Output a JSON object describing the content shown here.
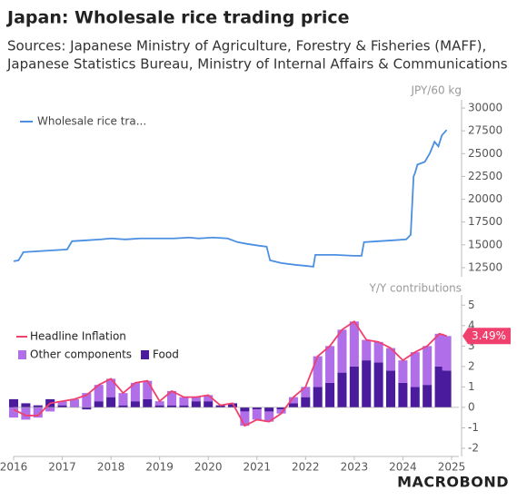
{
  "title": "Japan: Wholesale rice trading price",
  "subtitle": [
    "Sources: Japanese Ministry of Agriculture, Forestry & Fisheries (MAFF),",
    "Japanese Statistics Bureau, Ministry of Internal Affairs & Communications"
  ],
  "logo": "MACROBOND",
  "chart_data": [
    {
      "type": "line",
      "y_label": "JPY/60 kg",
      "legend": "top-left",
      "xlim": [
        2016,
        2025.15
      ],
      "ylim": [
        11500,
        30900
      ],
      "yticks": [
        12500,
        15000,
        17500,
        20000,
        22500,
        25000,
        27500,
        30000
      ],
      "series": [
        {
          "name": "Wholesale rice tra...",
          "color": "#4a8fe2",
          "x": [
            2016.0,
            2016.1,
            2016.2,
            2016.5,
            2016.8,
            2017.1,
            2017.2,
            2017.5,
            2017.8,
            2018.0,
            2018.3,
            2018.6,
            2019.0,
            2019.3,
            2019.6,
            2019.8,
            2020.1,
            2020.4,
            2020.6,
            2020.8,
            2021.05,
            2021.2,
            2021.27,
            2021.5,
            2021.8,
            2022.0,
            2022.16,
            2022.2,
            2022.6,
            2023.0,
            2023.15,
            2023.2,
            2023.5,
            2023.8,
            2024.07,
            2024.16,
            2024.22,
            2024.25,
            2024.3,
            2024.45,
            2024.55,
            2024.65,
            2024.73,
            2024.8,
            2024.9
          ],
          "values": [
            13200,
            13300,
            14200,
            14300,
            14400,
            14500,
            15400,
            15500,
            15600,
            15700,
            15600,
            15700,
            15700,
            15700,
            15800,
            15700,
            15800,
            15700,
            15300,
            15100,
            14900,
            14800,
            13300,
            13000,
            12800,
            12700,
            12600,
            13900,
            13900,
            13800,
            13800,
            15300,
            15400,
            15500,
            15600,
            16100,
            22500,
            22900,
            23800,
            24100,
            25000,
            26300,
            25800,
            27000,
            27600
          ]
        }
      ]
    },
    {
      "type": "bar",
      "stacked": true,
      "y_label": "Y/Y contributions",
      "legend": "top-left",
      "xlim": [
        2016,
        2025.15
      ],
      "ylim": [
        -2.4,
        5.5
      ],
      "xticks": [
        2016,
        2017,
        2018,
        2019,
        2020,
        2021,
        2022,
        2023,
        2024,
        2025
      ],
      "yticks": [
        -2,
        -1,
        0,
        1,
        2,
        3,
        4,
        5
      ],
      "x": [
        2016.0,
        2016.25,
        2016.5,
        2016.75,
        2017.0,
        2017.25,
        2017.5,
        2017.75,
        2018.0,
        2018.25,
        2018.5,
        2018.75,
        2019.0,
        2019.25,
        2019.5,
        2019.75,
        2020.0,
        2020.25,
        2020.5,
        2020.75,
        2021.0,
        2021.25,
        2021.5,
        2021.75,
        2022.0,
        2022.25,
        2022.5,
        2022.75,
        2023.0,
        2023.25,
        2023.5,
        2023.75,
        2024.0,
        2024.25,
        2024.5,
        2024.75,
        2024.9
      ],
      "series": [
        {
          "name": "Headline Inflation",
          "type": "line",
          "color": "#f0406e",
          "values": [
            -0.1,
            -0.4,
            -0.4,
            0.2,
            0.3,
            0.4,
            0.6,
            1.1,
            1.4,
            0.7,
            1.2,
            1.3,
            0.3,
            0.8,
            0.5,
            0.5,
            0.6,
            0.1,
            0.2,
            -0.9,
            -0.6,
            -0.7,
            -0.3,
            0.5,
            1.0,
            2.5,
            3.0,
            3.8,
            4.2,
            3.3,
            3.2,
            2.9,
            2.3,
            2.7,
            3.0,
            3.6,
            3.49
          ],
          "value_labels": [
            null,
            null,
            null,
            null,
            null,
            null,
            null,
            null,
            null,
            null,
            null,
            null,
            null,
            null,
            null,
            null,
            null,
            null,
            null,
            null,
            null,
            null,
            null,
            null,
            null,
            null,
            null,
            null,
            null,
            null,
            null,
            null,
            null,
            null,
            null,
            null,
            "3.49%"
          ]
        },
        {
          "name": "Other components",
          "color": "#b06ee8",
          "values": [
            -0.5,
            -0.6,
            -0.5,
            -0.2,
            0.2,
            0.4,
            0.7,
            0.8,
            0.9,
            0.6,
            0.9,
            0.9,
            0.2,
            0.7,
            0.4,
            0.2,
            0.3,
            0.0,
            0.0,
            -0.7,
            -0.5,
            -0.5,
            -0.2,
            0.3,
            0.5,
            1.5,
            1.8,
            2.1,
            2.2,
            1.0,
            1.0,
            1.1,
            1.1,
            1.7,
            1.9,
            1.6,
            1.69
          ]
        },
        {
          "name": "Food",
          "color": "#4b1b9e",
          "values": [
            0.4,
            0.2,
            0.1,
            0.4,
            0.1,
            0.0,
            -0.1,
            0.3,
            0.5,
            0.1,
            0.3,
            0.4,
            0.1,
            0.1,
            0.1,
            0.3,
            0.3,
            0.1,
            0.2,
            -0.2,
            -0.1,
            -0.2,
            -0.1,
            0.2,
            0.5,
            1.0,
            1.2,
            1.7,
            2.0,
            2.3,
            2.2,
            1.8,
            1.2,
            1.0,
            1.1,
            2.0,
            1.8
          ]
        }
      ]
    }
  ]
}
